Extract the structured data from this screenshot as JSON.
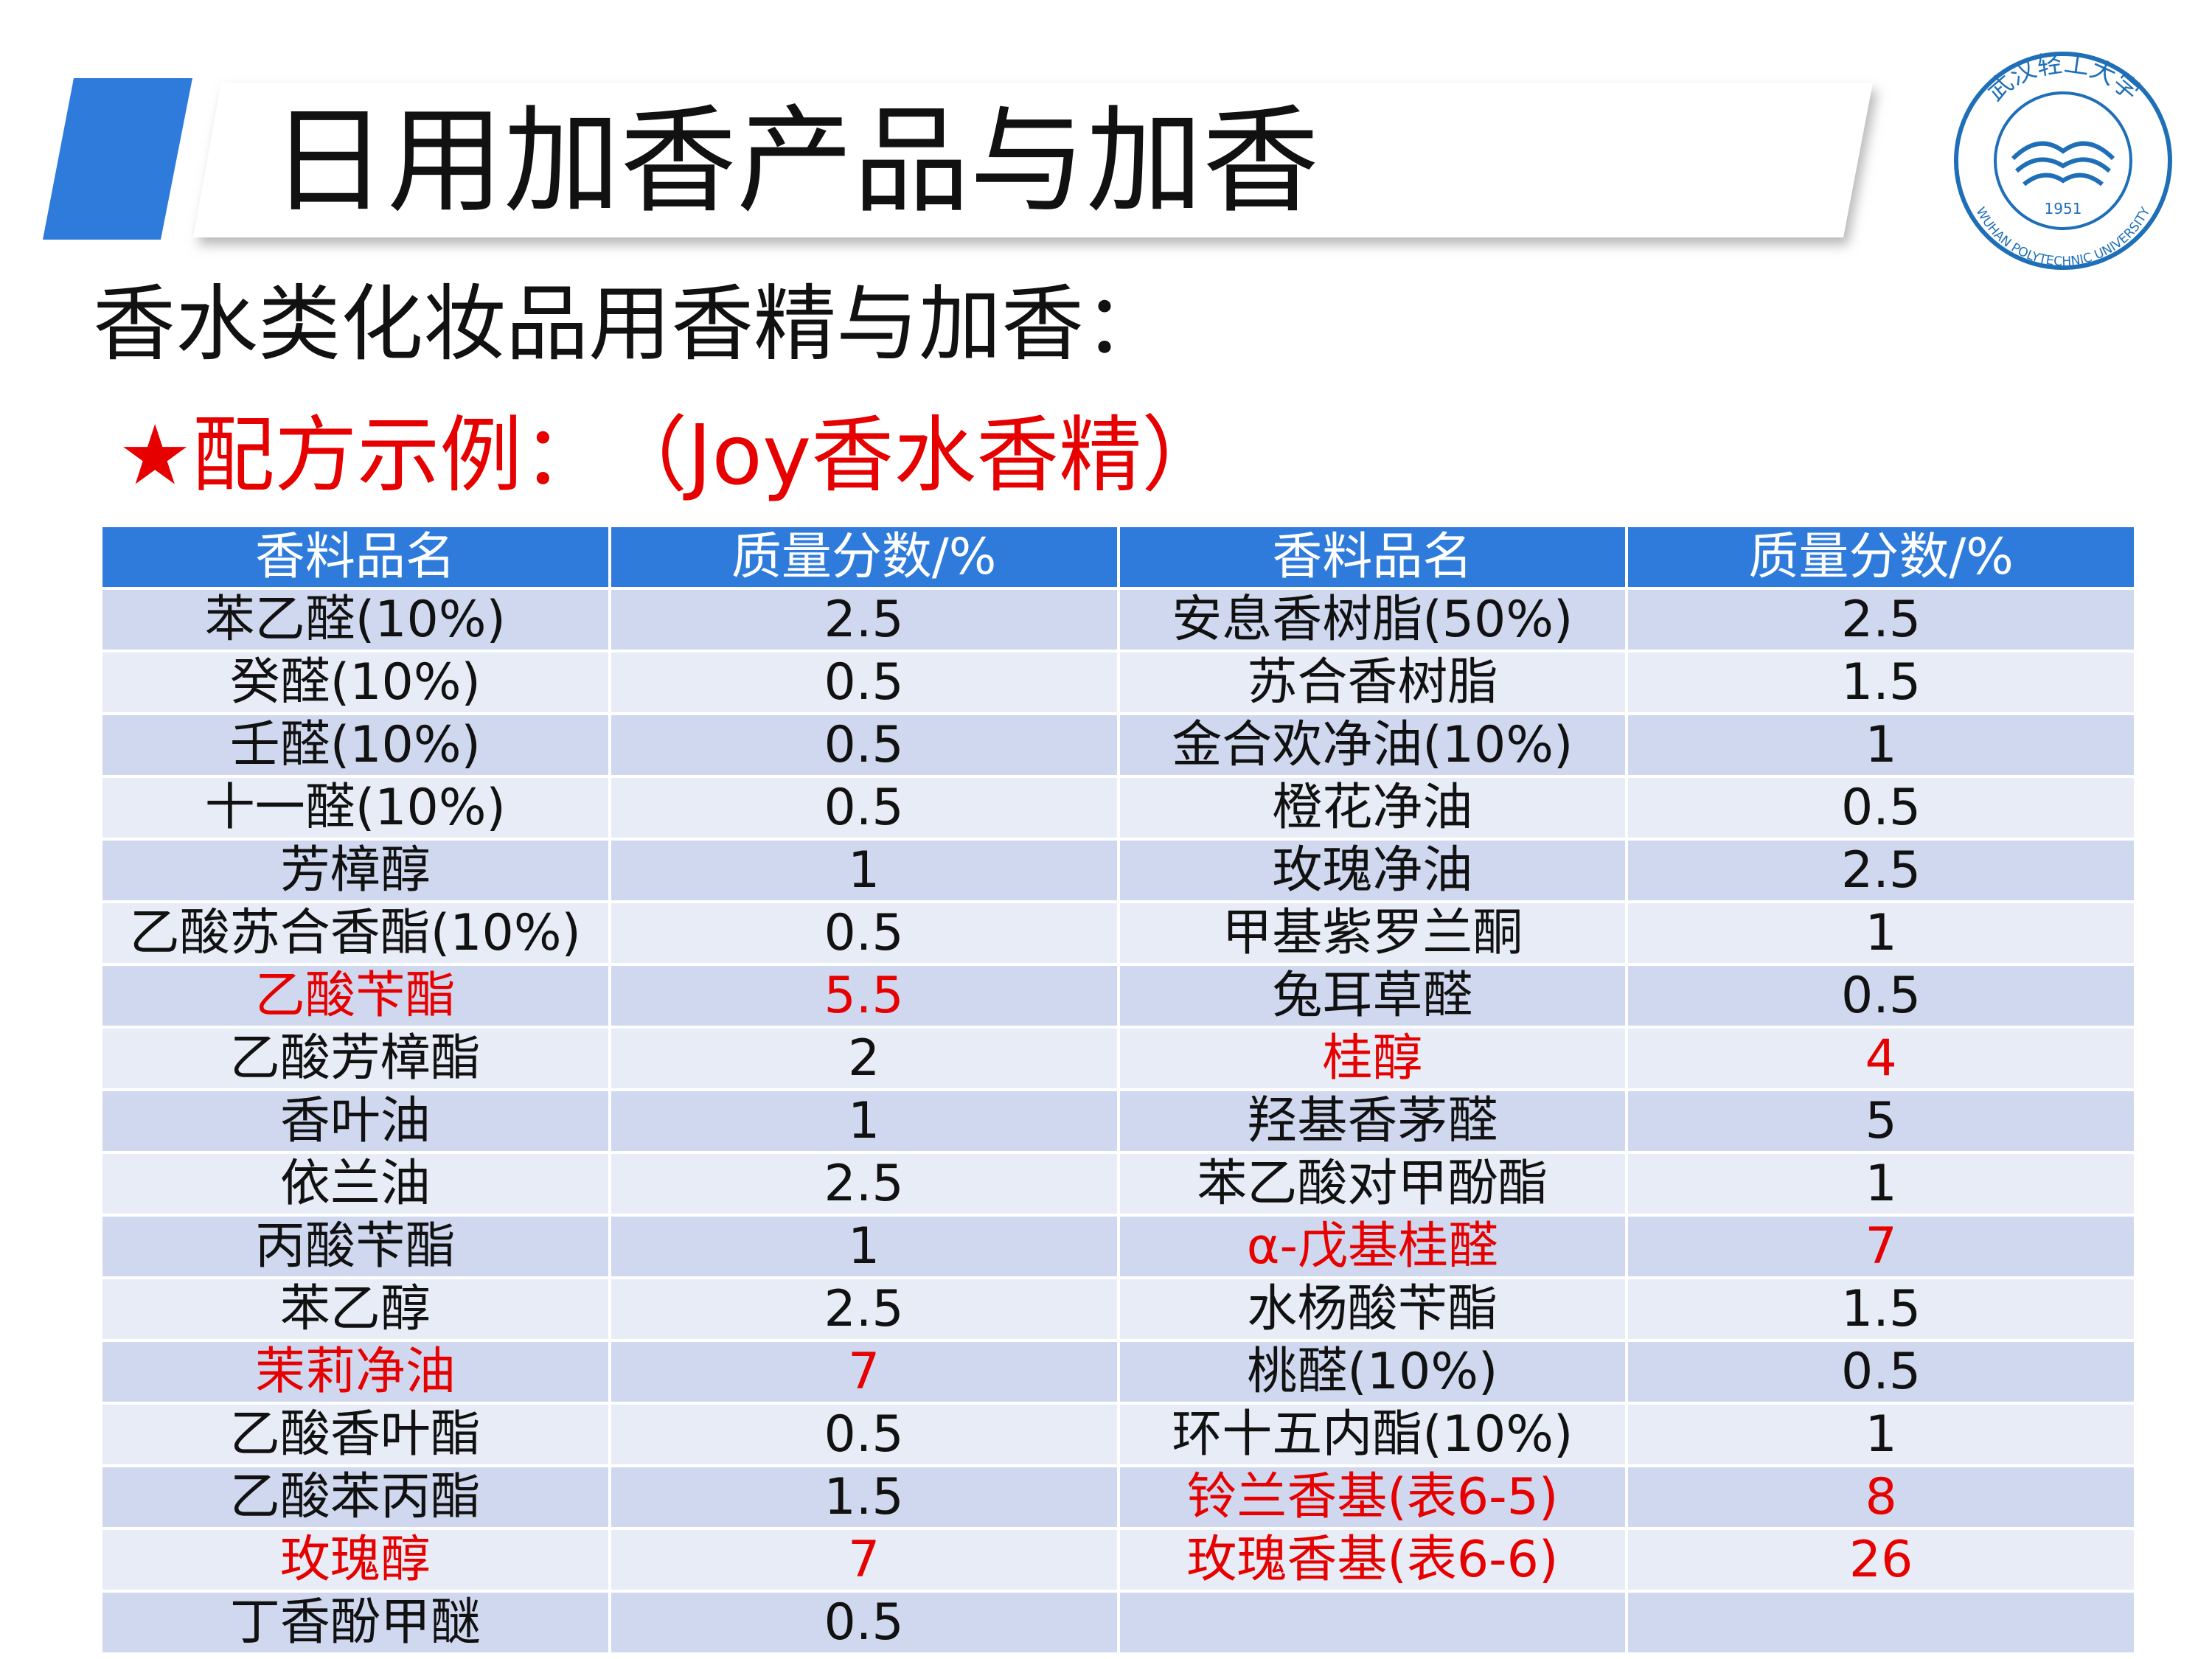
{
  "header": {
    "title": "日用加香产品与加香"
  },
  "logo": {
    "name_cn": "武汉轻工大学",
    "name_en": "WUHAN POLYTECHNIC UNIVERSITY",
    "year": "1951"
  },
  "subtitle": "香水类化妆品用香精与加香：",
  "example_heading": "★配方示例：　（Joy香水香精）",
  "table": {
    "header": [
      "香料品名",
      "质量分数/%",
      "香料品名",
      "质量分数/%"
    ],
    "rows": [
      [
        {
          "name": "苯乙醛(10%)",
          "value": "2.5"
        },
        {
          "name": "安息香树脂(50%)",
          "value": "2.5"
        }
      ],
      [
        {
          "name": "癸醛(10%)",
          "value": "0.5"
        },
        {
          "name": "苏合香树脂",
          "value": "1.5"
        }
      ],
      [
        {
          "name": "壬醛(10%)",
          "value": "0.5"
        },
        {
          "name": "金合欢净油(10%)",
          "value": "1"
        }
      ],
      [
        {
          "name": "十一醛(10%)",
          "value": "0.5"
        },
        {
          "name": "橙花净油",
          "value": "0.5"
        }
      ],
      [
        {
          "name": "芳樟醇",
          "value": "1"
        },
        {
          "name": "玫瑰净油",
          "value": "2.5"
        }
      ],
      [
        {
          "name": "乙酸苏合香酯(10%)",
          "value": "0.5"
        },
        {
          "name": "甲基紫罗兰酮",
          "value": "1"
        }
      ],
      [
        {
          "name": "乙酸苄酯",
          "value": "5.5",
          "highlight": true
        },
        {
          "name": "兔耳草醛",
          "value": "0.5"
        }
      ],
      [
        {
          "name": "乙酸芳樟酯",
          "value": "2"
        },
        {
          "name": "桂醇",
          "value": "4",
          "highlight": true
        }
      ],
      [
        {
          "name": "香叶油",
          "value": "1"
        },
        {
          "name": "羟基香茅醛",
          "value": "5"
        }
      ],
      [
        {
          "name": "依兰油",
          "value": "2.5"
        },
        {
          "name": "苯乙酸对甲酚酯",
          "value": "1"
        }
      ],
      [
        {
          "name": "丙酸苄酯",
          "value": "1"
        },
        {
          "name": "α-戊基桂醛",
          "value": "7",
          "highlight": true
        }
      ],
      [
        {
          "name": "苯乙醇",
          "value": "2.5"
        },
        {
          "name": "水杨酸苄酯",
          "value": "1.5"
        }
      ],
      [
        {
          "name": "茉莉净油",
          "value": "7",
          "highlight": true
        },
        {
          "name": "桃醛(10%)",
          "value": "0.5"
        }
      ],
      [
        {
          "name": "乙酸香叶酯",
          "value": "0.5"
        },
        {
          "name": "环十五内酯(10%)",
          "value": "1"
        }
      ],
      [
        {
          "name": "乙酸苯丙酯",
          "value": "1.5"
        },
        {
          "name": "铃兰香基(表6-5)",
          "value": "8",
          "highlight": true
        }
      ],
      [
        {
          "name": "玫瑰醇",
          "value": "7",
          "highlight": true
        },
        {
          "name": "玫瑰香基(表6-6)",
          "value": "26",
          "highlight": true
        }
      ],
      [
        {
          "name": "丁香酚甲醚",
          "value": "0.5"
        },
        null
      ]
    ]
  }
}
